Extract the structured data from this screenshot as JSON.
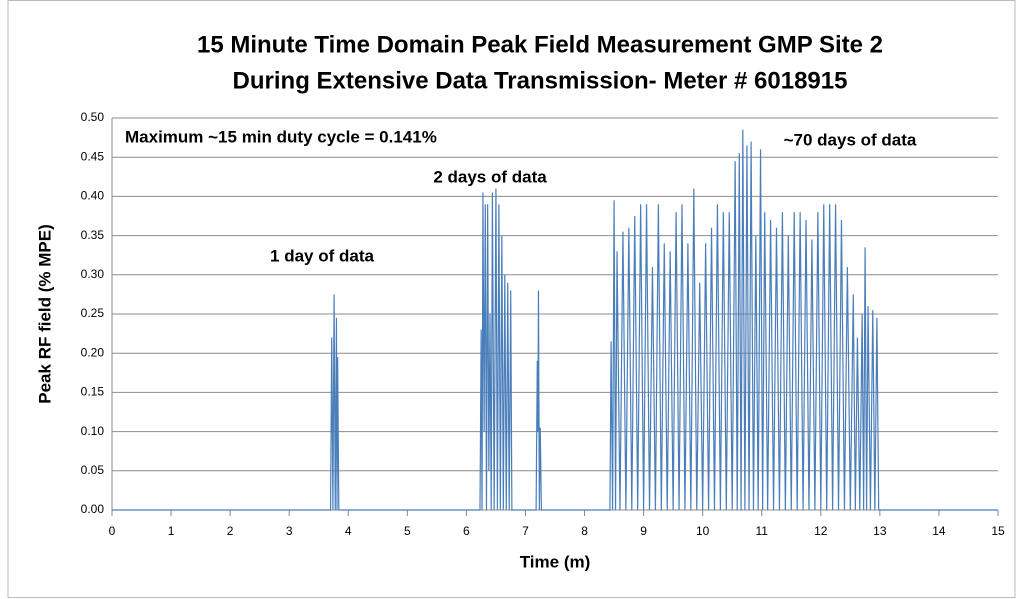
{
  "chart_data": {
    "type": "line",
    "title": [
      "15 Minute Time Domain Peak Field Measurement GMP Site 2",
      "During Extensive Data Transmission- Meter # 6018915"
    ],
    "xlabel": "Time (m)",
    "ylabel": "Peak RF field (% MPE)",
    "annotations": [
      "Maximum ~15 min duty cycle = 0.141%",
      "1 day of data",
      "2 days of data",
      "~70 days of data"
    ],
    "color": "#4a7ebb",
    "grid": true,
    "xlim": [
      0,
      15
    ],
    "xticks": [
      0,
      1,
      2,
      3,
      4,
      5,
      6,
      7,
      8,
      9,
      10,
      11,
      12,
      13,
      14,
      15
    ],
    "ylim": [
      0,
      0.5
    ],
    "yticks": [
      {
        "value": 0,
        "label": "0.00"
      },
      {
        "value": 0.05,
        "label": "0.05"
      },
      {
        "value": 0.1,
        "label": "0.10"
      },
      {
        "value": 0.15,
        "label": "0.15"
      },
      {
        "value": 0.2,
        "label": "0.20"
      },
      {
        "value": 0.25,
        "label": "0.25"
      },
      {
        "value": 0.3,
        "label": "0.30"
      },
      {
        "value": 0.35,
        "label": "0.35"
      },
      {
        "value": 0.4,
        "label": "0.40"
      },
      {
        "value": 0.45,
        "label": "0.45"
      },
      {
        "value": 0.5,
        "label": "0.50"
      }
    ],
    "x": [
      0,
      3.7,
      3.72,
      3.74,
      3.76,
      3.78,
      3.8,
      3.81,
      3.82,
      3.84,
      6.23,
      6.25,
      6.265,
      6.28,
      6.3,
      6.32,
      6.34,
      6.36,
      6.38,
      6.4,
      6.42,
      6.44,
      6.47,
      6.5,
      6.525,
      6.55,
      6.575,
      6.6,
      6.625,
      6.65,
      6.675,
      6.7,
      6.725,
      6.75,
      6.77,
      7.18,
      7.2,
      7.21,
      7.22,
      7.235,
      7.25,
      7.27,
      8.43,
      8.45,
      8.475,
      8.5,
      8.525,
      8.55,
      8.6,
      8.65,
      8.7,
      8.75,
      8.8,
      8.85,
      8.9,
      8.95,
      9,
      9.05,
      9.1,
      9.15,
      9.2,
      9.25,
      9.3,
      9.35,
      9.4,
      9.45,
      9.5,
      9.55,
      9.6,
      9.65,
      9.7,
      9.75,
      9.8,
      9.85,
      9.9,
      9.95,
      10,
      10.05,
      10.1,
      10.15,
      10.2,
      10.25,
      10.3,
      10.35,
      10.4,
      10.45,
      10.5,
      10.55,
      10.585,
      10.62,
      10.65,
      10.68,
      10.715,
      10.75,
      10.785,
      10.82,
      10.86,
      10.9,
      10.94,
      10.98,
      11.015,
      11.05,
      11.1,
      11.15,
      11.2,
      11.25,
      11.3,
      11.35,
      11.4,
      11.45,
      11.5,
      11.55,
      11.6,
      11.65,
      11.7,
      11.75,
      11.8,
      11.85,
      11.9,
      11.95,
      12,
      12.05,
      12.1,
      12.15,
      12.2,
      12.25,
      12.3,
      12.35,
      12.4,
      12.45,
      12.5,
      12.55,
      12.585,
      12.62,
      12.66,
      12.7,
      12.725,
      12.75,
      12.775,
      12.8,
      12.84,
      12.88,
      12.915,
      12.95,
      12.98,
      15
    ],
    "values": [
      0,
      0,
      0.22,
      0,
      0.275,
      0,
      0.245,
      0,
      0.195,
      0,
      0,
      0.23,
      0,
      0.405,
      0.1,
      0.39,
      0,
      0.39,
      0.05,
      0.25,
      0,
      0.405,
      0,
      0.41,
      0,
      0.39,
      0,
      0.35,
      0,
      0.3,
      0,
      0.29,
      0,
      0.28,
      0,
      0,
      0.19,
      0.1,
      0.28,
      0,
      0.105,
      0,
      0,
      0.215,
      0,
      0.395,
      0,
      0.33,
      0,
      0.355,
      0,
      0.36,
      0,
      0.375,
      0,
      0.39,
      0,
      0.39,
      0,
      0.31,
      0,
      0.39,
      0,
      0.34,
      0,
      0.33,
      0,
      0.38,
      0,
      0.39,
      0,
      0.34,
      0,
      0.41,
      0,
      0.29,
      0,
      0.34,
      0,
      0.36,
      0,
      0.39,
      0,
      0.38,
      0,
      0.38,
      0,
      0.445,
      0,
      0.455,
      0,
      0.485,
      0,
      0.465,
      0,
      0.47,
      0,
      0.35,
      0,
      0.46,
      0,
      0.38,
      0,
      0.37,
      0,
      0.36,
      0,
      0.38,
      0,
      0.35,
      0,
      0.38,
      0,
      0.38,
      0,
      0.37,
      0,
      0.345,
      0,
      0.38,
      0,
      0.39,
      0,
      0.39,
      0,
      0.39,
      0,
      0.37,
      0,
      0.31,
      0,
      0.275,
      0,
      0.22,
      0,
      0.25,
      0,
      0.335,
      0,
      0.26,
      0,
      0.255,
      0,
      0.245,
      0,
      0
    ]
  }
}
